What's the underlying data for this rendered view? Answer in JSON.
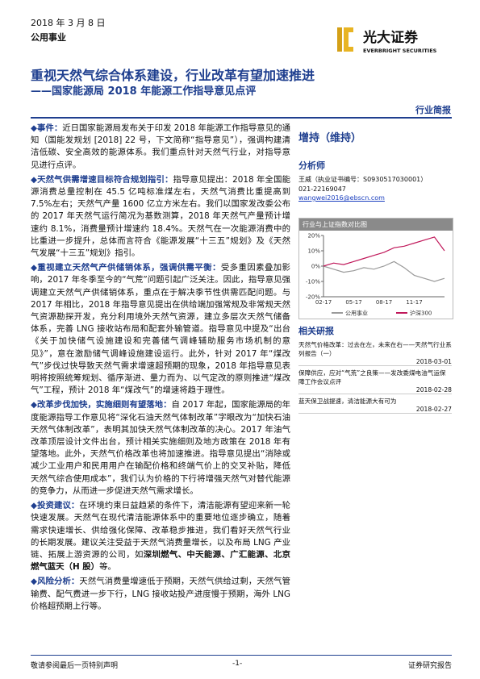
{
  "header": {
    "date": "2018 年 3 月 8 日",
    "sector": "公用事业",
    "brand": "光大证券",
    "brand_en": "EVERBRIGHT SECURITIES",
    "title": "重视天然气综合体系建设，行业改革有望加速推进",
    "subtitle": "——国家能源局 2018 年能源工作指导意见点评",
    "report_type": "行业简报"
  },
  "paragraphs": [
    {
      "heading": "◆事件：",
      "text": "近日国家能源局发布关于印发 2018 年能源工作指导意见的通知（国能发规划 [2018] 22 号，下文简称“指导意见”），强调构建清洁低碳、安全高效的能源体系。我们重点针对天然气行业，对指导意见进行点评。"
    },
    {
      "heading": "◆天然气供需增速目标符合规划指引：",
      "text": "指导意见提出：2018 年全国能源消费总量控制在 45.5 亿吨标准煤左右，天然气消费比重提高到 7.5%左右；天然气产量 1600 亿立方米左右。我们以国家发改委公布的 2017 年天然气运行简况为基数测算，2018 年天然气产量预计增速约 8.1%，消费量预计增速约 18.4%。天然气在一次能源消费中的比重进一步提升，总体而言符合《能源发展“十三五”规划》及《天然气发展“十三五”规划》指引。"
    },
    {
      "heading": "◆重视建立天然气产供储销体系，强调供需平衡：",
      "text": "受多重因素叠加影响，2017 年冬季至今的“气荒”问题引起广泛关注。因此，指导意见强调建立天然气产供储销体系，重点在于解决季节性供需匹配问题。与 2017 年相比，2018 年指导意见提出在供给端加强常规及非常规天然气资源勘探开发，充分利用境外天然气资源，建立多层次天然气储备体系，完善 LNG 接收站布局和配套外输管道。指导意见中提及“出台《关于加快储气设施建设和完善储气调峰辅助服务市场机制的意见》”，意在激励储气调峰设施建设运行。此外，针对 2017 年“煤改气”步伐过快导致天然气需求增速超预期的现象，2018 年指导意见表明将按照统筹规划、循序渐进、量力而为、以气定改的原则推进“煤改气”工程，预计 2018 年“煤改气”的增速将趋于理性。"
    },
    {
      "heading": "◆改革步伐加快，实施细则有望落地：",
      "text": "自 2017 年起，国家能源局的年度能源指导工作意见将“深化石油天然气体制改革”字眼改为“加快石油天然气体制改革”，表明其加快天然气体制改革的决心。2017 年油气改革顶层设计文件出台，预计相关实施细则及地方政策在 2018 年有望落地。此外，天然气价格改革也将加速推进。指导意见提出“消除或减少工业用户和民用用户在输配价格和终端气价上的交叉补贴，降低天然气综合使用成本”，我们认为价格的下行将增强天然气对替代能源的竞争力，从而进一步促进天然气需求增长。"
    },
    {
      "heading": "◆投资建议：",
      "text": "在环境约束日益趋紧的条件下，清洁能源有望迎来新一轮快速发展。天然气在现代清洁能源体系中的重要地位逐步确立，随着需求快速增长、供给强化保障、改革稳步推进，我们看好天然气行业的长期发展。建议关注受益于天然气消费量增长，以及布局 LNG 产业链、拓展上游资源的公司，如",
      "highlight": "深圳燃气、中天能源、广汇能源、北京燃气蓝天（H 股）",
      "text_end": "等。"
    },
    {
      "heading": "◆风险分析：",
      "text": "天然气消费量增速低于预期，天然气供给过剩，天然气管输费、配气费进一步下行，LNG 接收站投产进度慢于预期，海外 LNG 价格超预期上行等。"
    }
  ],
  "sidebar": {
    "rating": "增持（维持）",
    "analyst_heading": "分析师",
    "analyst": "王威（执业证书编号：S0930517030001）",
    "phone": "021-22169047",
    "email": "wangwei2016@ebscn.com",
    "related_heading": "相关研报",
    "related": [
      {
        "title": "天然气价格改革：过去在左，未来在右——天然气行业系列报告（一）",
        "date": "2018-03-01"
      },
      {
        "title": "保障供应，应对“气荒”之良策——发改委煤电油气运保障工作会议点评",
        "date": "2018-02-28"
      },
      {
        "title": "蓝天保卫战提速，清洁能源大有可为",
        "date": "2018-02-27"
      }
    ]
  },
  "sidebar_chart": {
    "type": "line",
    "title": "行业与上证指数对比图",
    "categories": [
      "02-17",
      null,
      null,
      "05-17",
      null,
      null,
      "08-17",
      null,
      null,
      "11-17",
      null,
      null,
      null
    ],
    "series": [
      {
        "name": "公用事业",
        "color": "#9a9a9a",
        "values": [
          0,
          -2,
          -4,
          -3,
          -1,
          -2,
          0,
          3,
          -1,
          -6,
          -8,
          -10,
          -8
        ]
      },
      {
        "name": "沪深300",
        "color": "#c0185a",
        "values": [
          0,
          2,
          1,
          3,
          5,
          7,
          9,
          12,
          13,
          15,
          17,
          19,
          10
        ]
      }
    ],
    "ylim": [
      -20,
      20
    ],
    "yticks": [
      {
        "value": -20,
        "label": "-20%"
      },
      {
        "value": -10,
        "label": "-10%"
      },
      {
        "value": 0,
        "label": "0%"
      },
      {
        "value": 10,
        "label": "10%"
      },
      {
        "value": 20,
        "label": "20%"
      }
    ]
  },
  "footer": {
    "left": "敬请参阅最后一页特别声明",
    "page": "-1-",
    "right": "证券研究报告"
  }
}
